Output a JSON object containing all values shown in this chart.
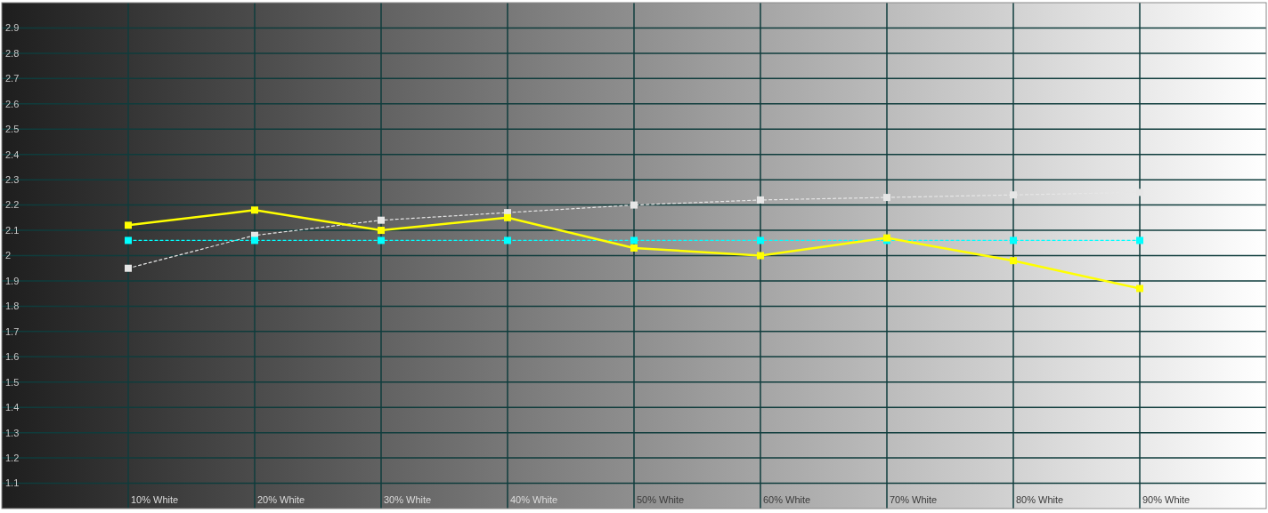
{
  "chart_data": {
    "type": "line",
    "categories": [
      "10% White",
      "20% White",
      "30% White",
      "40% White",
      "50% White",
      "60% White",
      "70% White",
      "80% White",
      "90% White"
    ],
    "series": [
      {
        "color": "#e6e6e6",
        "line_style": "dashed",
        "values": [
          1.95,
          2.08,
          2.14,
          2.17,
          2.2,
          2.22,
          2.23,
          2.24,
          2.25
        ]
      },
      {
        "color": "#00ffff",
        "line_style": "dashed",
        "values": [
          2.06,
          2.06,
          2.06,
          2.06,
          2.06,
          2.06,
          2.06,
          2.06,
          2.06
        ]
      },
      {
        "color": "#ffff00",
        "line_style": "solid",
        "values": [
          2.12,
          2.18,
          2.1,
          2.15,
          2.03,
          2.0,
          2.07,
          1.98,
          1.87
        ]
      }
    ],
    "ylim": [
      1,
      3
    ],
    "yticks": [
      1.1,
      1.2,
      1.3,
      1.4,
      1.5,
      1.6,
      1.7,
      1.8,
      1.9,
      2,
      2.1,
      2.2,
      2.3,
      2.4,
      2.5,
      2.6,
      2.7,
      2.8,
      2.9
    ],
    "grid": true,
    "marker": "square"
  }
}
